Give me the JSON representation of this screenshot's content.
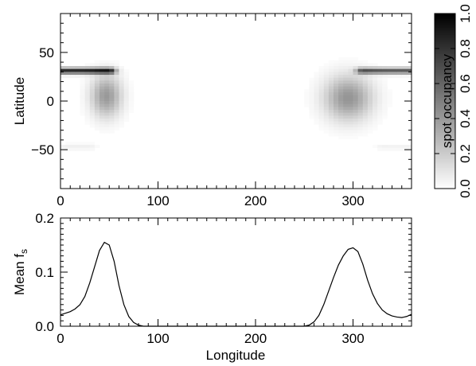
{
  "chart_data": [
    {
      "type": "heatmap",
      "title": "",
      "xlabel": "",
      "ylabel": "Latitude",
      "xlim": [
        0,
        360
      ],
      "ylim": [
        -90,
        90
      ],
      "x_ticks": [
        "0",
        "100",
        "200",
        "300"
      ],
      "y_ticks": [
        "50",
        "0",
        "−50"
      ],
      "colorbar": {
        "label": "spot occupancy",
        "range": [
          0.0,
          1.0
        ],
        "ticks": [
          "0.0",
          "0.2",
          "0.4",
          "0.6",
          "0.8",
          "1.0"
        ],
        "colormap": "white-to-black"
      },
      "features": [
        {
          "kind": "blob",
          "lon": 47,
          "lat": 5,
          "lon_width": 11,
          "lat_width": 15,
          "peak": 0.4
        },
        {
          "kind": "blob",
          "lon": 295,
          "lat": 3,
          "lon_width": 17,
          "lat_width": 16,
          "peak": 0.42
        },
        {
          "kind": "band",
          "lat": 31,
          "lon_start": 0,
          "lon_end": 50,
          "peak": 0.85
        },
        {
          "kind": "band",
          "lat": 31,
          "lon_start": 310,
          "lon_end": 360,
          "peak": 0.65
        },
        {
          "kind": "band",
          "lat": -47,
          "lon_start": 5,
          "lon_end": 30,
          "peak": 0.06
        },
        {
          "kind": "band",
          "lat": -47,
          "lon_start": 330,
          "lon_end": 358,
          "peak": 0.05
        }
      ]
    },
    {
      "type": "line",
      "title": "",
      "xlabel": "Longitude",
      "ylabel": "Mean f",
      "ylabel_subscript": "s",
      "xlim": [
        0,
        360
      ],
      "ylim": [
        0,
        0.2
      ],
      "x_ticks": [
        "0",
        "100",
        "200",
        "300"
      ],
      "y_ticks": [
        "0.0",
        "0.1",
        "0.2"
      ],
      "series": [
        {
          "x": [
            0,
            5,
            10,
            15,
            20,
            25,
            30,
            35,
            40,
            45,
            50,
            55,
            60,
            65,
            70,
            75,
            80,
            85,
            90,
            100,
            150,
            200,
            250,
            255,
            260,
            265,
            270,
            275,
            280,
            285,
            290,
            295,
            300,
            305,
            310,
            315,
            320,
            325,
            330,
            335,
            340,
            345,
            350,
            355,
            360
          ],
          "values": [
            0.021,
            0.024,
            0.027,
            0.032,
            0.04,
            0.055,
            0.08,
            0.11,
            0.14,
            0.155,
            0.15,
            0.12,
            0.075,
            0.04,
            0.018,
            0.007,
            0.002,
            0.0,
            0.0,
            0.0,
            0.0,
            0.0,
            0.0,
            0.002,
            0.008,
            0.02,
            0.04,
            0.065,
            0.09,
            0.113,
            0.13,
            0.142,
            0.145,
            0.138,
            0.115,
            0.085,
            0.06,
            0.042,
            0.03,
            0.023,
            0.019,
            0.017,
            0.016,
            0.018,
            0.022
          ]
        }
      ]
    }
  ]
}
